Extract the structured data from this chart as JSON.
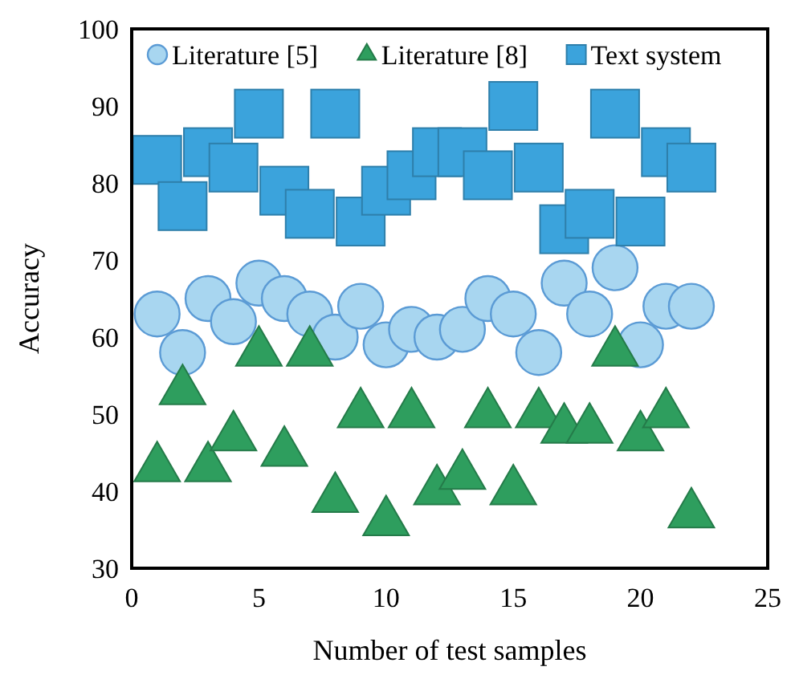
{
  "chart_data": {
    "type": "scatter",
    "xlabel": "Number of test samples",
    "ylabel": "Accuracy",
    "xlim": [
      0,
      25
    ],
    "xticks": [
      0,
      5,
      10,
      15,
      20,
      25
    ],
    "ylim": [
      30,
      100
    ],
    "yticks": [
      30,
      40,
      50,
      60,
      70,
      80,
      90,
      100
    ],
    "grid": false,
    "legend": "top left",
    "x": [
      1,
      2,
      3,
      4,
      5,
      6,
      7,
      8,
      9,
      10,
      11,
      12,
      13,
      14,
      15,
      16,
      17,
      18,
      19,
      20,
      21,
      22
    ],
    "series": [
      {
        "name": "Literature [5]",
        "color": "#a8d6f0",
        "marker": "circle",
        "values": [
          63,
          58,
          65,
          62,
          67,
          65,
          63,
          60,
          64,
          59,
          61,
          60,
          61,
          65,
          63,
          58,
          67,
          63,
          69,
          59,
          64,
          64
        ]
      },
      {
        "name": "Literature [8]",
        "color": "#2e9e5e",
        "marker": "triangle",
        "values": [
          43,
          53,
          43,
          47,
          58,
          45,
          58,
          39,
          50,
          36,
          50,
          40,
          42,
          50,
          40,
          50,
          48,
          48,
          58,
          47,
          50,
          37
        ]
      },
      {
        "name": "Text system",
        "color": "#3ba3dc",
        "marker": "square",
        "values": [
          83,
          77,
          84,
          82,
          89,
          79,
          76,
          89,
          75,
          79,
          81,
          84,
          84,
          81,
          90,
          82,
          74,
          76,
          89,
          75,
          84,
          82
        ]
      }
    ]
  }
}
